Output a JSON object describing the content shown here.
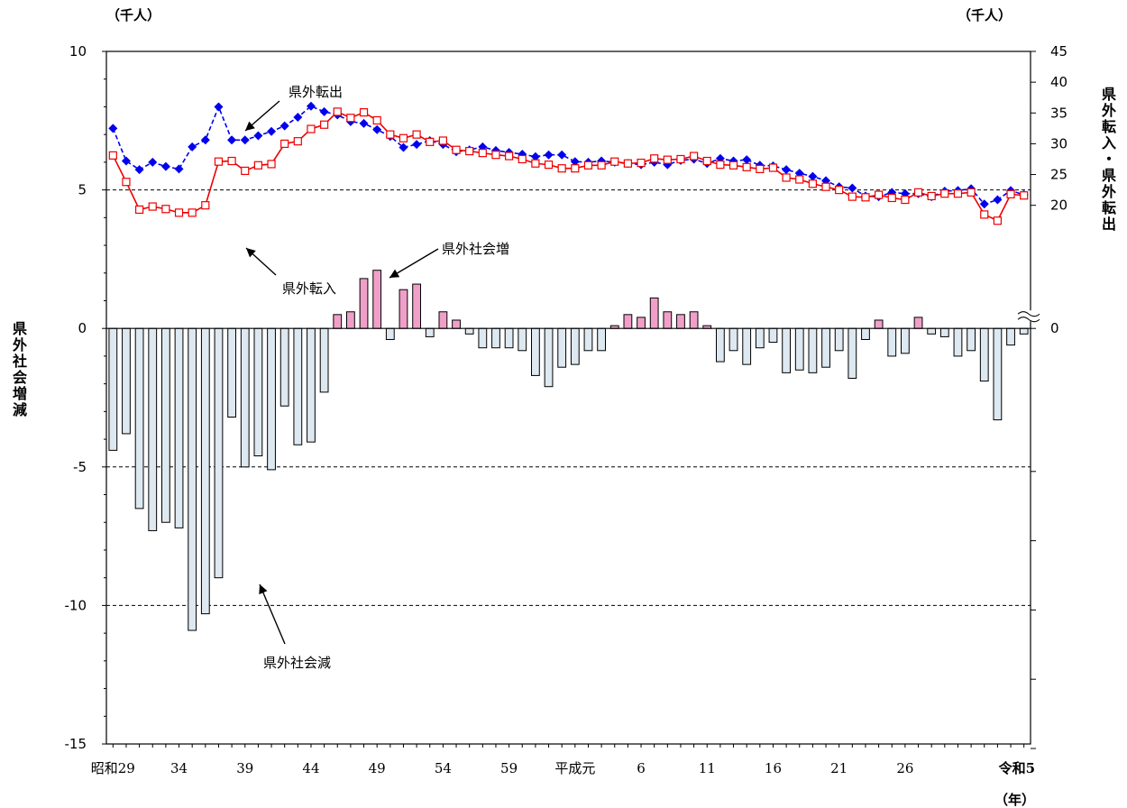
{
  "chart_data": {
    "type": "bar+line",
    "left_unit": "（千人）",
    "right_unit": "（千人）",
    "x_unit": "（年）",
    "left_axis_label": "県外社会増減",
    "right_axis_label": "県外転入・県外転出",
    "left_ylim": [
      -15,
      10
    ],
    "left_ticks": [
      10,
      5,
      0,
      -5,
      -10,
      -15
    ],
    "right_ylim": [
      0,
      45
    ],
    "right_ticks": [
      45,
      40,
      35,
      30,
      25,
      20,
      0
    ],
    "gridlines": [
      5,
      -5,
      -10
    ],
    "category_labels": [
      {
        "i": 0,
        "label": "昭和29"
      },
      {
        "i": 5,
        "label": "34"
      },
      {
        "i": 10,
        "label": "39"
      },
      {
        "i": 15,
        "label": "44"
      },
      {
        "i": 20,
        "label": "49"
      },
      {
        "i": 25,
        "label": "54"
      },
      {
        "i": 30,
        "label": "59"
      },
      {
        "i": 35,
        "label": "平成元"
      },
      {
        "i": 40,
        "label": "6"
      },
      {
        "i": 45,
        "label": "11"
      },
      {
        "i": 50,
        "label": "16"
      },
      {
        "i": 55,
        "label": "21"
      },
      {
        "i": 60,
        "label": "26"
      },
      {
        "i": 69,
        "label": "令和5"
      }
    ],
    "bar_series": {
      "name": "県外社会増減",
      "positive_color": "#f0a0c8",
      "negative_color": "#dde8f0",
      "values": [
        -4.4,
        -3.8,
        -6.5,
        -7.3,
        -7.0,
        -7.2,
        -10.9,
        -10.3,
        -9.0,
        -3.2,
        -5.0,
        -4.6,
        -5.1,
        -2.8,
        -4.2,
        -4.1,
        -2.3,
        0.5,
        0.6,
        1.8,
        2.1,
        -0.4,
        1.4,
        1.6,
        -0.3,
        0.6,
        0.3,
        -0.2,
        -0.7,
        -0.7,
        -0.7,
        -0.8,
        -1.7,
        -2.1,
        -1.4,
        -1.3,
        -0.8,
        -0.8,
        0.1,
        0.5,
        0.4,
        1.1,
        0.6,
        0.5,
        0.6,
        0.1,
        -1.2,
        -0.8,
        -1.3,
        -0.7,
        -0.5,
        -1.6,
        -1.5,
        -1.6,
        -1.4,
        -0.8,
        -1.8,
        -0.4,
        0.3,
        -1.0,
        -0.9,
        0.4,
        -0.2,
        -0.3,
        -1.0,
        -0.8,
        -1.9,
        -3.3,
        -0.6,
        -0.2
      ]
    },
    "series": [
      {
        "name": "県外転出",
        "color": "#0000ee",
        "axis": "right",
        "values": [
          32.5,
          27.2,
          25.8,
          27.0,
          26.3,
          25.9,
          29.5,
          30.6,
          36.0,
          30.6,
          30.6,
          31.3,
          32.0,
          32.9,
          34.3,
          36.1,
          35.2,
          34.7,
          33.6,
          33.3,
          32.3,
          31.2,
          29.4,
          29.9,
          30.5,
          29.9,
          28.7,
          29.0,
          29.5,
          28.9,
          28.6,
          28.3,
          27.9,
          28.2,
          28.2,
          27.1,
          27.0,
          27.2,
          27.0,
          26.8,
          26.6,
          27.0,
          26.6,
          27.3,
          27.5,
          26.8,
          27.6,
          27.2,
          27.4,
          26.5,
          26.4,
          25.8,
          25.2,
          24.7,
          24.0,
          23.0,
          22.8,
          21.5,
          21.4,
          22.1,
          21.9,
          21.9,
          21.4,
          22.3,
          22.4,
          22.7,
          20.2,
          20.9,
          22.4,
          21.7
        ]
      },
      {
        "name": "県外転入",
        "color": "#ee0000",
        "axis": "right",
        "values": [
          28.1,
          23.8,
          19.3,
          19.8,
          19.4,
          18.8,
          18.8,
          20.0,
          27.1,
          27.2,
          25.6,
          26.5,
          26.7,
          30.0,
          30.4,
          32.4,
          33.1,
          35.2,
          34.2,
          35.1,
          33.8,
          31.5,
          30.9,
          31.5,
          30.3,
          30.5,
          29.0,
          28.8,
          28.5,
          28.2,
          28.0,
          27.5,
          26.8,
          26.6,
          26.0,
          26.0,
          26.5,
          26.5,
          27.1,
          26.8,
          26.9,
          27.6,
          27.4,
          27.5,
          28.0,
          27.2,
          26.6,
          26.5,
          26.2,
          25.9,
          26.1,
          24.5,
          24.2,
          23.5,
          23.0,
          22.5,
          21.4,
          21.3,
          21.7,
          21.2,
          20.9,
          22.1,
          21.5,
          21.9,
          21.9,
          22.1,
          18.5,
          17.5,
          21.8,
          21.6
        ]
      }
    ],
    "annotations": [
      {
        "id": "out",
        "text": "県外転出"
      },
      {
        "id": "in",
        "text": "県外転入"
      },
      {
        "id": "gain",
        "text": "県外社会増"
      },
      {
        "id": "loss",
        "text": "県外社会減"
      }
    ]
  }
}
